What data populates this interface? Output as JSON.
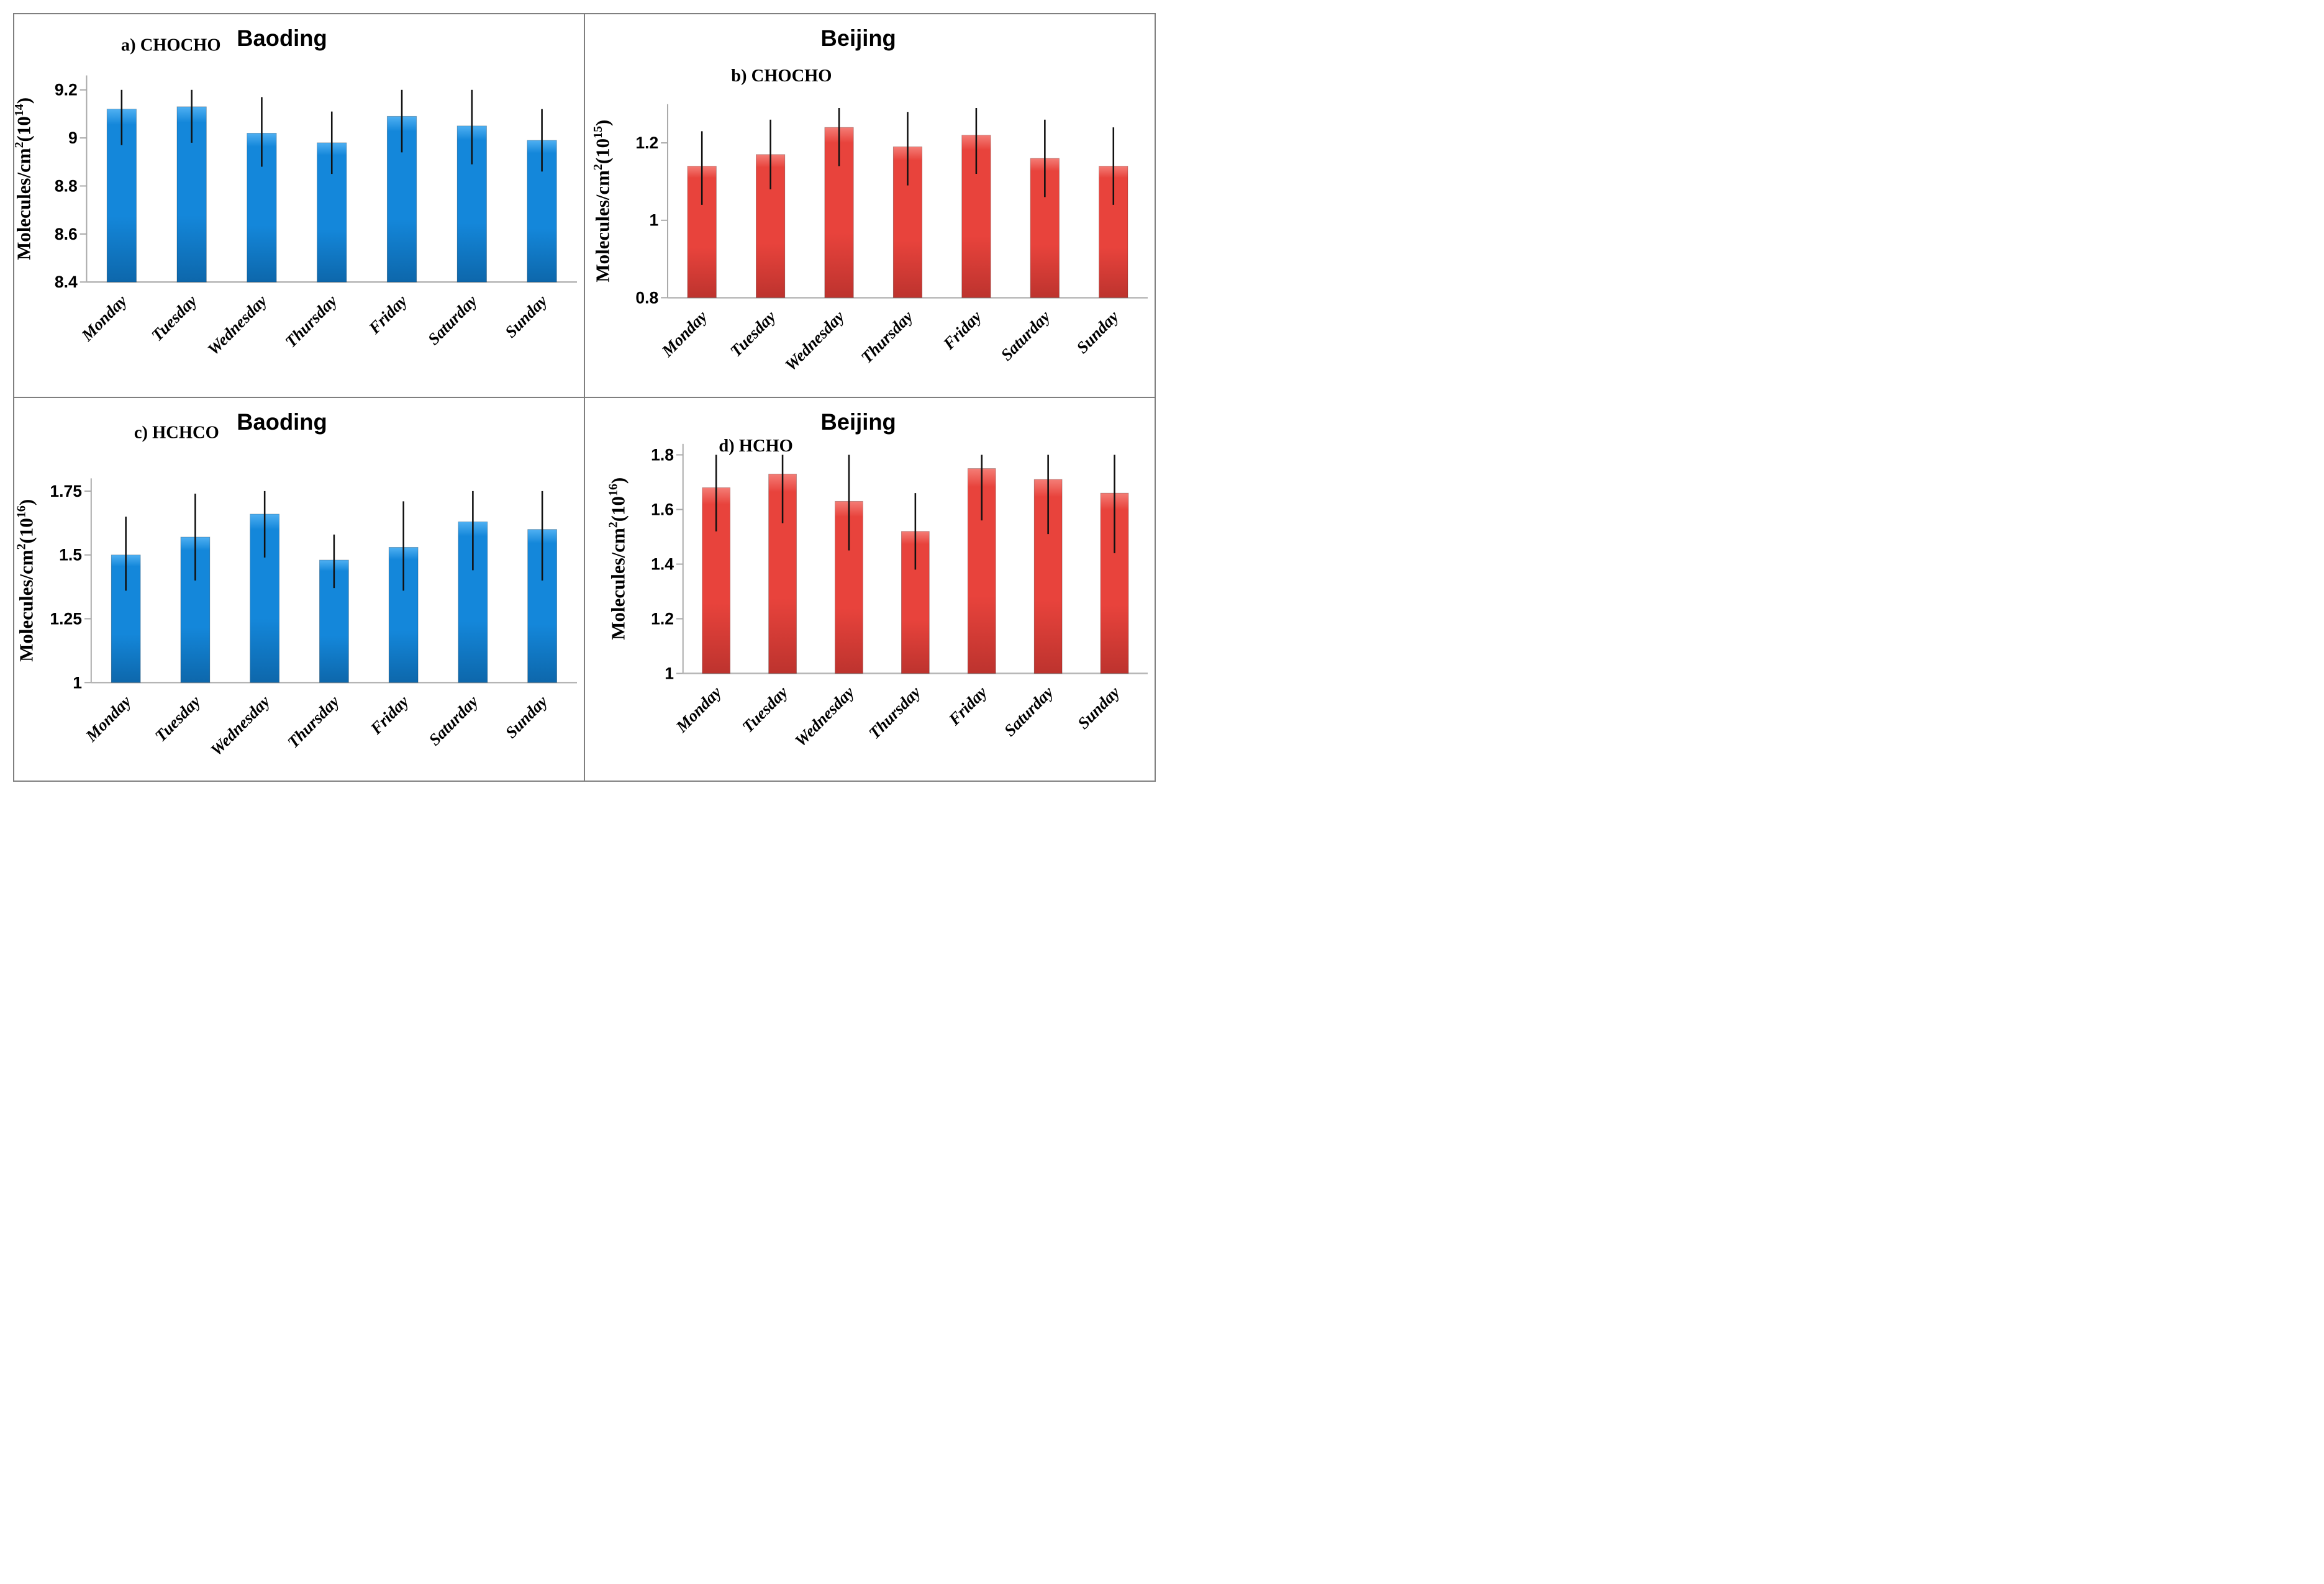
{
  "figure": {
    "border_color": "#7f7f7f",
    "background": "#ffffff",
    "error_bar_color": "#111111",
    "axis_color": "#a9a9a9",
    "baseline_color": "#b5b5b5",
    "text_color": "#000000"
  },
  "chart_data": [
    {
      "id": "a",
      "type": "bar",
      "panel_label": "a) CHOCHO",
      "title": "Baoding",
      "ylabel": {
        "prefix": "Molecules/cm",
        "sup1": "2",
        "mid": "(10",
        "sup2": "14",
        "suffix": ")"
      },
      "categories": [
        "Monday",
        "Tuesday",
        "Wednesday",
        "Thursday",
        "Friday",
        "Saturday",
        "Sunday"
      ],
      "values": [
        9.12,
        9.13,
        9.02,
        8.98,
        9.09,
        9.05,
        8.99
      ],
      "error_low": [
        8.97,
        8.98,
        8.88,
        8.85,
        8.94,
        8.89,
        8.86
      ],
      "error_high": [
        9.2,
        9.2,
        9.17,
        9.11,
        9.2,
        9.2,
        9.12
      ],
      "ylim": [
        8.4,
        9.26
      ],
      "yticks": [
        {
          "v": 8.4,
          "label": "8.4"
        },
        {
          "v": 8.6,
          "label": "8.6"
        },
        {
          "v": 8.8,
          "label": "8.8"
        },
        {
          "v": 9.0,
          "label": "9"
        },
        {
          "v": 9.2,
          "label": "9.2"
        }
      ],
      "grid": false,
      "legend": "none",
      "bar_color": {
        "light": "#4fb0f2",
        "main": "#1487da",
        "dark": "#0d67ab"
      },
      "layout": {
        "axis_x": 0.127,
        "baseline_y": 0.7,
        "top_y": 0.16,
        "title_x": 0.47,
        "title_y": 0.06,
        "label_x": 0.275,
        "label_y": 0.095
      }
    },
    {
      "id": "b",
      "type": "bar",
      "panel_label": "b) CHOCHO",
      "title": "Beijing",
      "ylabel": {
        "prefix": "Molecules/cm",
        "sup1": "2",
        "mid": "(10",
        "sup2": "15",
        "suffix": ")"
      },
      "categories": [
        "Monday",
        "Tuesday",
        "Wednesday",
        "Thursday",
        "Friday",
        "Saturday",
        "Sunday"
      ],
      "values": [
        1.14,
        1.17,
        1.24,
        1.19,
        1.22,
        1.16,
        1.14
      ],
      "error_low": [
        1.04,
        1.08,
        1.14,
        1.09,
        1.12,
        1.06,
        1.04
      ],
      "error_high": [
        1.23,
        1.26,
        1.29,
        1.28,
        1.29,
        1.26,
        1.24
      ],
      "ylim": [
        0.8,
        1.3
      ],
      "yticks": [
        {
          "v": 0.8,
          "label": "0.8"
        },
        {
          "v": 1.0,
          "label": "1"
        },
        {
          "v": 1.2,
          "label": "1.2"
        }
      ],
      "grid": false,
      "legend": "none",
      "bar_color": {
        "light": "#f47d76",
        "main": "#e8433c",
        "dark": "#bd332e"
      },
      "layout": {
        "axis_x": 0.145,
        "baseline_y": 0.741,
        "top_y": 0.235,
        "title_x": 0.48,
        "title_y": 0.06,
        "label_x": 0.345,
        "label_y": 0.175
      }
    },
    {
      "id": "c",
      "type": "bar",
      "panel_label": "c) HCHCO",
      "title": "Baoding",
      "ylabel": {
        "prefix": "Molecules/cm",
        "sup1": "2",
        "mid": "(10",
        "sup2": "16",
        "suffix": ")"
      },
      "categories": [
        "Monday",
        "Tuesday",
        "Wednesday",
        "Thursday",
        "Friday",
        "Saturday",
        "Sunday"
      ],
      "values": [
        1.5,
        1.57,
        1.66,
        1.48,
        1.53,
        1.63,
        1.6
      ],
      "error_low": [
        1.36,
        1.4,
        1.49,
        1.37,
        1.36,
        1.44,
        1.4
      ],
      "error_high": [
        1.65,
        1.74,
        1.75,
        1.58,
        1.71,
        1.75,
        1.75
      ],
      "ylim": [
        1.0,
        1.8
      ],
      "yticks": [
        {
          "v": 1.0,
          "label": "1"
        },
        {
          "v": 1.25,
          "label": "1.25"
        },
        {
          "v": 1.5,
          "label": "1.5"
        },
        {
          "v": 1.75,
          "label": "1.75"
        }
      ],
      "grid": false,
      "legend": "none",
      "bar_color": {
        "light": "#4fb0f2",
        "main": "#1487da",
        "dark": "#0d67ab"
      },
      "layout": {
        "axis_x": 0.135,
        "baseline_y": 0.744,
        "top_y": 0.21,
        "title_x": 0.47,
        "title_y": 0.06,
        "label_x": 0.285,
        "label_y": 0.105
      }
    },
    {
      "id": "d",
      "type": "bar",
      "panel_label": "d) HCHO",
      "title": "Beijing",
      "ylabel": {
        "prefix": "Molecules/cm",
        "sup1": "2",
        "mid": "(10",
        "sup2": "16",
        "suffix": ")"
      },
      "categories": [
        "Monday",
        "Tuesday",
        "Wednesday",
        "Thursday",
        "Friday",
        "Saturday",
        "Sunday"
      ],
      "values": [
        1.68,
        1.73,
        1.63,
        1.52,
        1.75,
        1.71,
        1.66
      ],
      "error_low": [
        1.52,
        1.55,
        1.45,
        1.38,
        1.56,
        1.51,
        1.44
      ],
      "error_high": [
        1.8,
        1.8,
        1.8,
        1.66,
        1.8,
        1.8,
        1.8
      ],
      "ylim": [
        1.0,
        1.84
      ],
      "yticks": [
        {
          "v": 1.0,
          "label": "1"
        },
        {
          "v": 1.2,
          "label": "1.2"
        },
        {
          "v": 1.4,
          "label": "1.4"
        },
        {
          "v": 1.6,
          "label": "1.6"
        },
        {
          "v": 1.8,
          "label": "1.8"
        }
      ],
      "grid": false,
      "legend": "none",
      "bar_color": {
        "light": "#f47d76",
        "main": "#e8433c",
        "dark": "#bd332e"
      },
      "layout": {
        "axis_x": 0.172,
        "baseline_y": 0.72,
        "top_y": 0.12,
        "title_x": 0.48,
        "title_y": 0.06,
        "label_x": 0.3,
        "label_y": 0.14
      }
    }
  ]
}
